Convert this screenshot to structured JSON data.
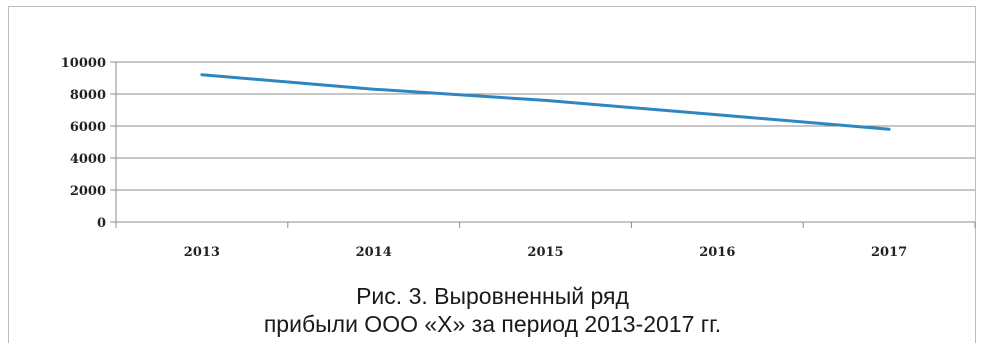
{
  "chart_data": {
    "type": "line",
    "categories": [
      "2013",
      "2014",
      "2015",
      "2016",
      "2017"
    ],
    "series": [
      {
        "values": [
          9200,
          8300,
          7600,
          6700,
          5800
        ]
      }
    ],
    "yticks": [
      "0",
      "2000",
      "4000",
      "6000",
      "8000",
      "10000"
    ],
    "ylim": [
      0,
      10000
    ],
    "grid": true,
    "legend": "none",
    "line_color": "#2e86c1"
  },
  "caption": {
    "line1": "Рис. 3. Выровненный ряд",
    "line2": "прибыли ООО «Х» за период 2013-2017 гг."
  }
}
